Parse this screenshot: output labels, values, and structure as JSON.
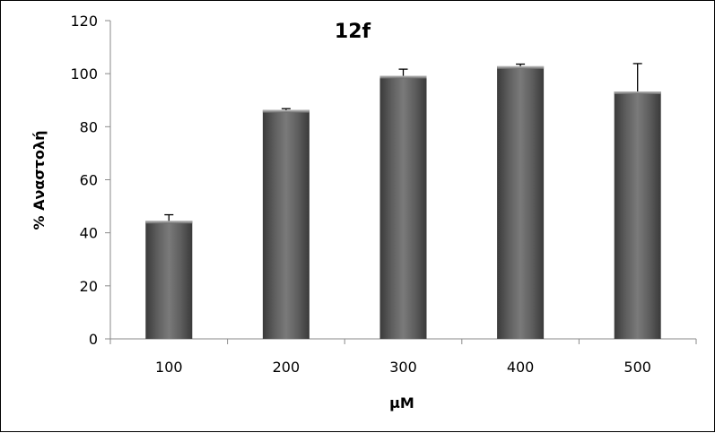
{
  "chart_data": {
    "type": "bar",
    "title": "12f",
    "xlabel": "μM",
    "ylabel": "% Αναστολή",
    "categories": [
      "100",
      "200",
      "300",
      "400",
      "500"
    ],
    "values": [
      44.5,
      86.3,
      99.2,
      102.8,
      93.3
    ],
    "errors": [
      2.3,
      0.5,
      2.5,
      0.8,
      10.5
    ],
    "ylim": [
      0,
      120
    ],
    "yticks": [
      0,
      20,
      40,
      60,
      80,
      100,
      120
    ],
    "grid": false,
    "legend": "none",
    "bar_color": "#666666"
  }
}
